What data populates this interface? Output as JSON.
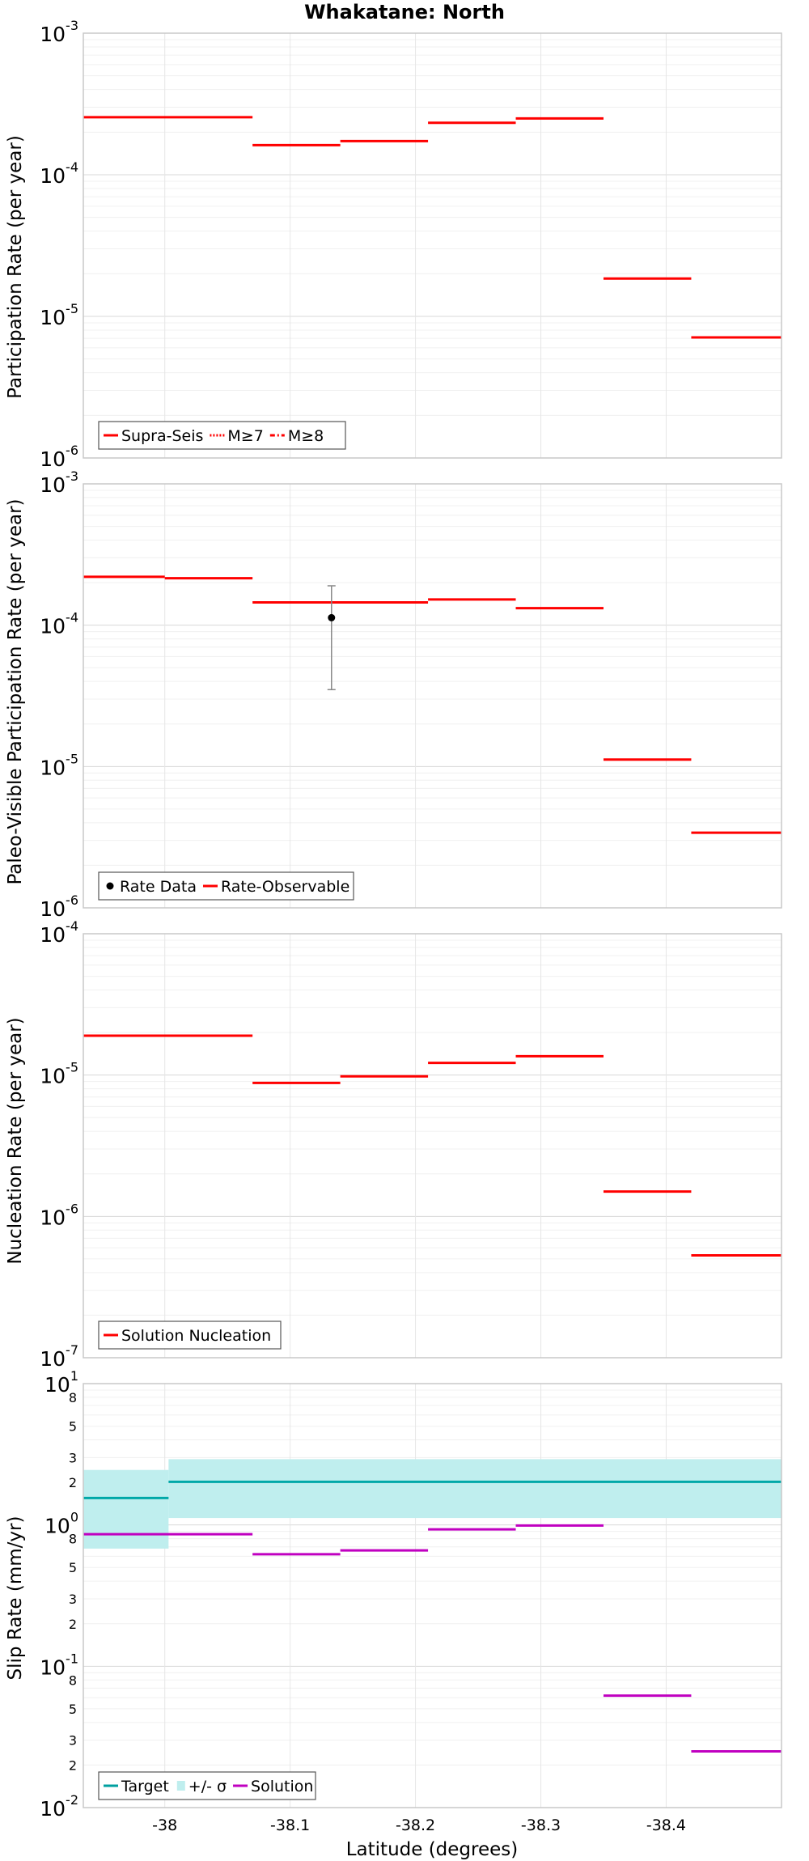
{
  "chart_data": {
    "title": "Whakatane: North",
    "xlabel": "Latitude (degrees)",
    "xlim": [
      -37.935,
      -38.492
    ],
    "xticks": [
      {
        "value": -38,
        "label": "-38"
      },
      {
        "value": -38.1,
        "label": "-38.1"
      },
      {
        "value": -38.2,
        "label": "-38.2"
      },
      {
        "value": -38.3,
        "label": "-38.3"
      },
      {
        "value": -38.4,
        "label": "-38.4"
      }
    ],
    "panels": [
      {
        "id": "participation",
        "type": "line",
        "yscale": "log",
        "ylabel": "Participation Rate (per year)",
        "ylim_exp": [
          -6,
          -3
        ],
        "yticks": [
          {
            "exp": -3,
            "base": "10",
            "sup": "-3"
          },
          {
            "exp": -4,
            "base": "10",
            "sup": "-4"
          },
          {
            "exp": -5,
            "base": "10",
            "sup": "-5"
          },
          {
            "exp": -6,
            "base": "10",
            "sup": "-6"
          }
        ],
        "legend": [
          {
            "label": "Supra-Seis",
            "color": "#ff0000",
            "style": "solid"
          },
          {
            "label": "M≥7",
            "color": "#ff0000",
            "style": "dotted"
          },
          {
            "label": "M≥8",
            "color": "#ff0000",
            "style": "dashdot"
          }
        ],
        "series": [
          {
            "name": "Supra-Seis",
            "color": "#ff0000",
            "style": "solid",
            "segments": [
              [
                -37.935,
                -38.07,
                0.000255
              ],
              [
                -38.07,
                -38.14,
                0.000162
              ],
              [
                -38.14,
                -38.21,
                0.000173
              ],
              [
                -38.21,
                -38.28,
                0.000233
              ],
              [
                -38.28,
                -38.35,
                0.00025
              ],
              [
                -38.35,
                -38.42,
                1.85e-05
              ],
              [
                -38.42,
                -38.492,
                7.1e-06
              ]
            ]
          }
        ]
      },
      {
        "id": "paleo",
        "type": "line",
        "yscale": "log",
        "ylabel": "Paleo-Visible Participation Rate (per year)",
        "ylim_exp": [
          -6,
          -3
        ],
        "yticks": [
          {
            "exp": -3,
            "base": "10",
            "sup": "-3"
          },
          {
            "exp": -4,
            "base": "10",
            "sup": "-4"
          },
          {
            "exp": -5,
            "base": "10",
            "sup": "-5"
          },
          {
            "exp": -6,
            "base": "10",
            "sup": "-6"
          }
        ],
        "legend": [
          {
            "label": "Rate Data",
            "color": "#000000",
            "style": "dot"
          },
          {
            "label": "Rate-Observable",
            "color": "#ff0000",
            "style": "solid"
          }
        ],
        "series": [
          {
            "name": "Rate-Observable",
            "color": "#ff0000",
            "style": "solid",
            "segments": [
              [
                -37.935,
                -38.0,
                0.00022
              ],
              [
                -38.0,
                -38.07,
                0.000215
              ],
              [
                -38.07,
                -38.21,
                0.000145
              ],
              [
                -38.21,
                -38.28,
                0.000152
              ],
              [
                -38.28,
                -38.35,
                0.000132
              ],
              [
                -38.35,
                -38.42,
                1.12e-05
              ],
              [
                -38.42,
                -38.492,
                3.4e-06
              ]
            ]
          }
        ],
        "points": [
          {
            "name": "Rate Data",
            "x": -38.133,
            "y": 0.000113,
            "ylow": 3.5e-05,
            "yhigh": 0.00019
          }
        ]
      },
      {
        "id": "nucleation",
        "type": "line",
        "yscale": "log",
        "ylabel": "Nucleation Rate (per year)",
        "ylim_exp": [
          -7,
          -4
        ],
        "yticks": [
          {
            "exp": -4,
            "base": "10",
            "sup": "-4"
          },
          {
            "exp": -5,
            "base": "10",
            "sup": "-5"
          },
          {
            "exp": -6,
            "base": "10",
            "sup": "-6"
          },
          {
            "exp": -7,
            "base": "10",
            "sup": "-7"
          }
        ],
        "legend": [
          {
            "label": "Solution Nucleation",
            "color": "#ff0000",
            "style": "solid"
          }
        ],
        "series": [
          {
            "name": "Solution Nucleation",
            "color": "#ff0000",
            "style": "solid",
            "segments": [
              [
                -37.935,
                -38.07,
                1.9e-05
              ],
              [
                -38.07,
                -38.14,
                8.8e-06
              ],
              [
                -38.14,
                -38.21,
                9.8e-06
              ],
              [
                -38.21,
                -38.28,
                1.22e-05
              ],
              [
                -38.28,
                -38.35,
                1.36e-05
              ],
              [
                -38.35,
                -38.42,
                1.5e-06
              ],
              [
                -38.42,
                -38.492,
                5.3e-07
              ]
            ]
          }
        ]
      },
      {
        "id": "slip",
        "type": "line",
        "yscale": "log",
        "ylabel": "Slip Rate (mm/yr)",
        "ylim_exp": [
          -2,
          1
        ],
        "yticks": [
          {
            "exp": 1,
            "base": "10",
            "sup": "1"
          },
          {
            "exp": 0,
            "base": "10",
            "sup": "0"
          },
          {
            "exp": -1,
            "base": "10",
            "sup": "-1"
          },
          {
            "exp": -2,
            "base": "10",
            "sup": "-2"
          }
        ],
        "minor_labels": [
          {
            "value": 8,
            "label": "8"
          },
          {
            "value": 5,
            "label": "5"
          },
          {
            "value": 3,
            "label": "3"
          },
          {
            "value": 2,
            "label": "2"
          },
          {
            "value": 0.8,
            "label": "8"
          },
          {
            "value": 0.5,
            "label": "5"
          },
          {
            "value": 0.3,
            "label": "3"
          },
          {
            "value": 0.2,
            "label": "2"
          },
          {
            "value": 0.08,
            "label": "8"
          },
          {
            "value": 0.05,
            "label": "5"
          },
          {
            "value": 0.03,
            "label": "3"
          },
          {
            "value": 0.02,
            "label": "2"
          }
        ],
        "legend": [
          {
            "label": "Target",
            "color": "#00a0a0",
            "style": "solid"
          },
          {
            "label": "+/- σ",
            "color": "#bfeeee",
            "style": "band"
          },
          {
            "label": "Solution",
            "color": "#c000c0",
            "style": "solid"
          }
        ],
        "bands": [
          {
            "name": "+/- σ",
            "color": "#bfeeee",
            "segments": [
              [
                -37.935,
                -38.003,
                0.68,
                2.45
              ],
              [
                -38.003,
                -38.492,
                1.12,
                2.92
              ]
            ]
          }
        ],
        "series": [
          {
            "name": "Target",
            "color": "#00a8a8",
            "style": "solid",
            "segments": [
              [
                -37.935,
                -38.003,
                1.55
              ],
              [
                -38.003,
                -38.492,
                2.02
              ]
            ]
          },
          {
            "name": "Solution",
            "color": "#c000c0",
            "style": "solid",
            "segments": [
              [
                -37.935,
                -38.07,
                0.86
              ],
              [
                -38.07,
                -38.14,
                0.62
              ],
              [
                -38.14,
                -38.21,
                0.66
              ],
              [
                -38.21,
                -38.28,
                0.93
              ],
              [
                -38.28,
                -38.35,
                0.99
              ],
              [
                -38.35,
                -38.42,
                0.062
              ],
              [
                -38.42,
                -38.492,
                0.025
              ]
            ]
          }
        ]
      }
    ]
  }
}
